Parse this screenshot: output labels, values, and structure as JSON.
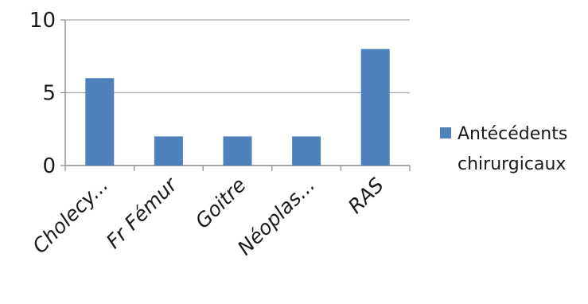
{
  "chart_data": {
    "type": "bar",
    "categories": [
      "Cholecy...",
      "Fr Fémur",
      "Goitre",
      "Néoplas...",
      "RAS"
    ],
    "series": [
      {
        "name": "Antécédents chirurgicaux",
        "legend_lines": [
          "Antécédents",
          "chirurgicaux"
        ],
        "values": [
          6,
          2,
          2,
          2,
          8
        ],
        "color": "#4f81bd"
      }
    ],
    "y_ticks": [
      0,
      5,
      10
    ],
    "ylim": [
      0,
      10
    ],
    "grid": true,
    "legend_position": "right",
    "grid_color": "#a6a6a6",
    "axis_color": "#8c8c8c"
  }
}
